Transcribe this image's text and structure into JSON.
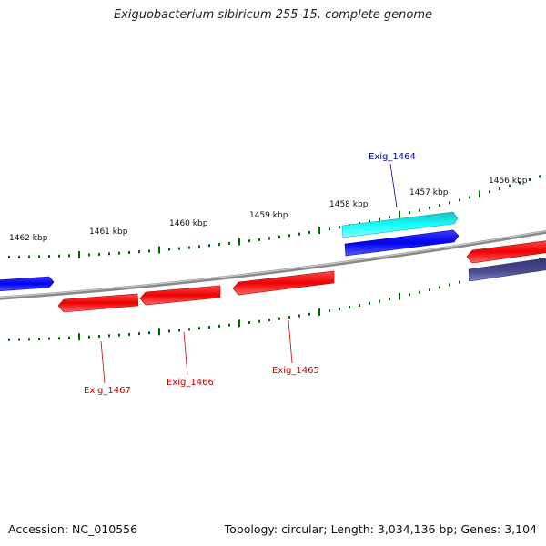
{
  "title": "Exiguobacterium sibiricum 255-15, complete genome",
  "footer": {
    "accession": "Accession: NC_010556",
    "summary": "Topology: circular; Length: 3,034,136 bp; Genes: 3,104"
  },
  "ticks": [
    "1462 kbp",
    "1461 kbp",
    "1460 kbp",
    "1459 kbp",
    "1458 kbp",
    "1457 kbp",
    "1456 kbp"
  ],
  "genes": [
    {
      "label": "Exig_1464",
      "color": "#000099"
    },
    {
      "label": "Exig_1467",
      "color": "#cc0000"
    },
    {
      "label": "Exig_1466",
      "color": "#cc0000"
    },
    {
      "label": "Exig_1465",
      "color": "#cc0000"
    }
  ],
  "colors": {
    "backbone": "#888888",
    "tick": "#006600",
    "forward_gene": "#0000ee",
    "reverse_gene": "#ee0000",
    "highlight_gene": "#00dddd",
    "other_gene": "#444488"
  }
}
